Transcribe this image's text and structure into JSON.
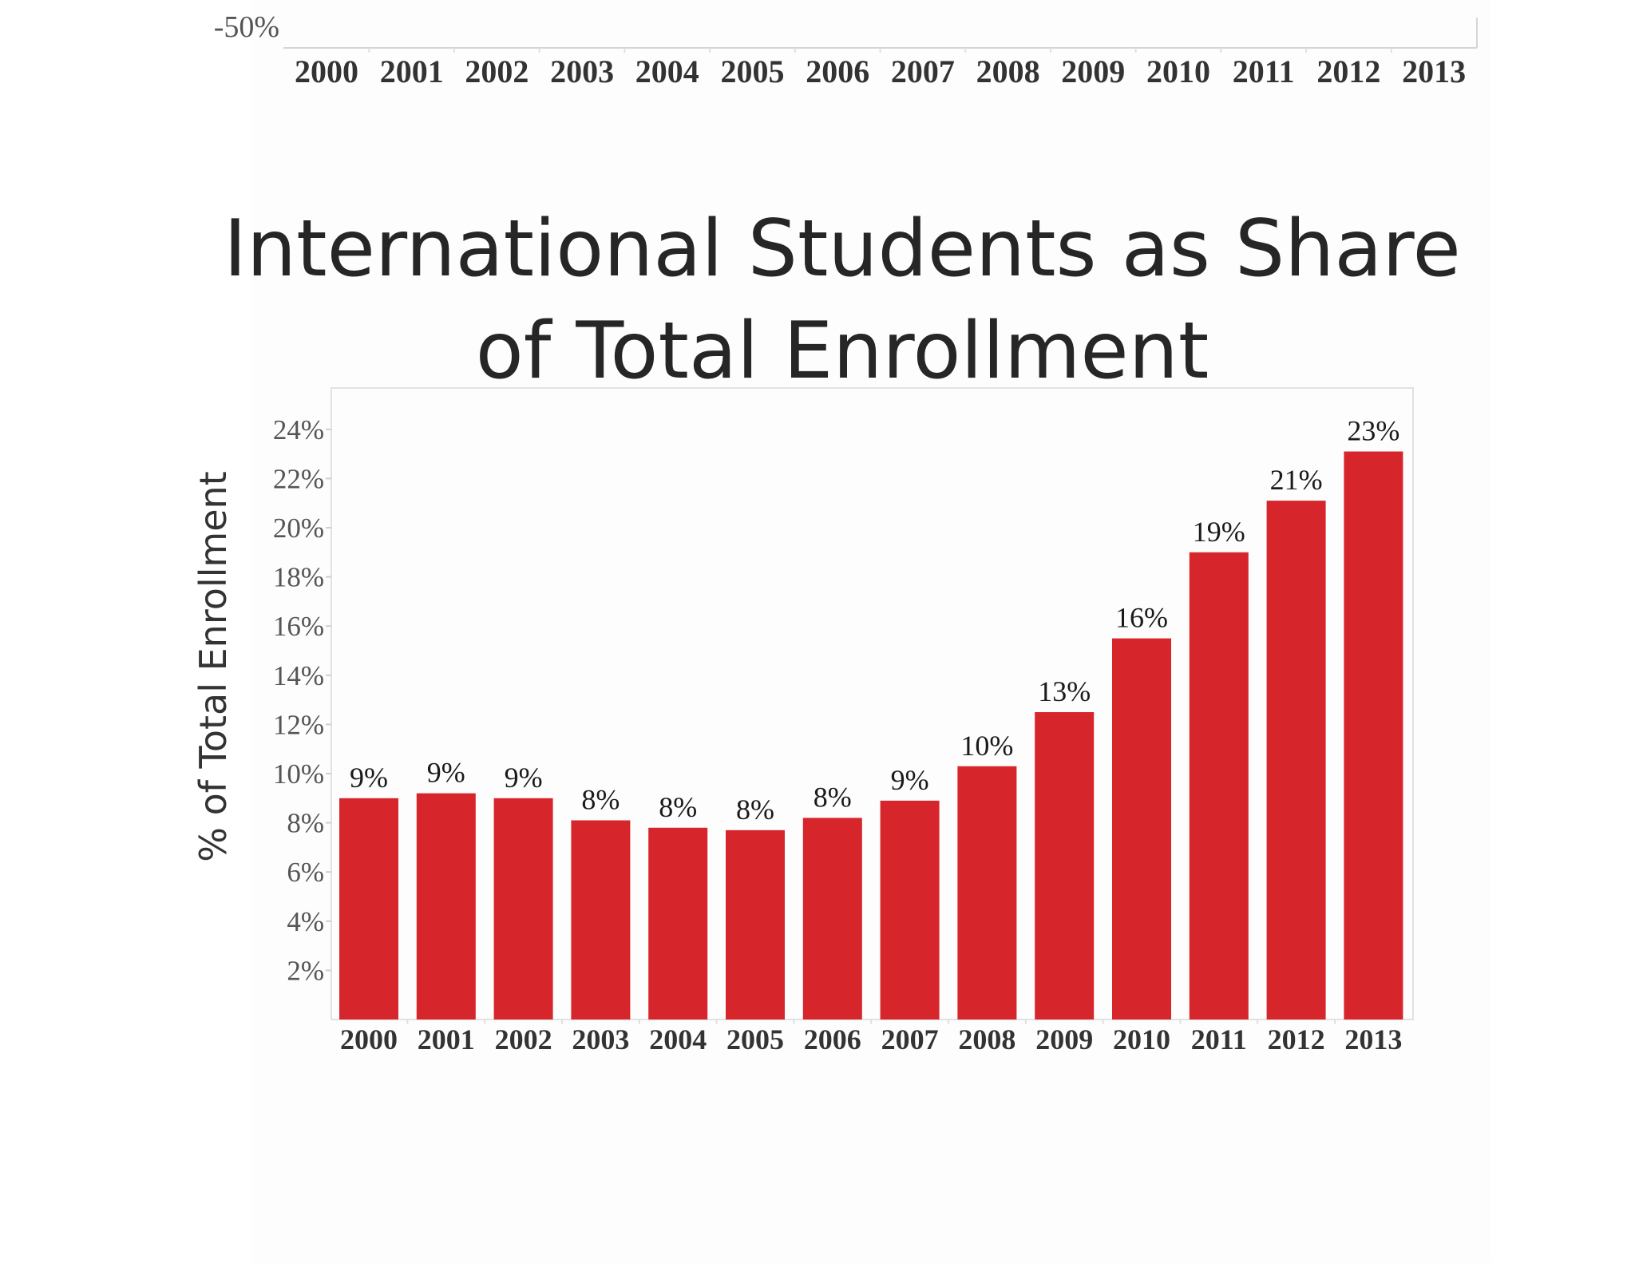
{
  "top_fragment": {
    "y_tick": "-50%",
    "x_ticks": [
      "2000",
      "2001",
      "2002",
      "2003",
      "2004",
      "2005",
      "2006",
      "2007",
      "2008",
      "2009",
      "2010",
      "2011",
      "2012",
      "2013"
    ]
  },
  "chart_data": {
    "type": "bar",
    "title": "International Students as Share of Total Enrollment",
    "title_lines": [
      "International Students as Share",
      "of Total Enrollment"
    ],
    "xlabel": "",
    "ylabel": "% of Total Enrollment",
    "categories": [
      "2000",
      "2001",
      "2002",
      "2003",
      "2004",
      "2005",
      "2006",
      "2007",
      "2008",
      "2009",
      "2010",
      "2011",
      "2012",
      "2013"
    ],
    "values": [
      9.0,
      9.2,
      9.0,
      8.1,
      7.8,
      7.7,
      8.2,
      8.9,
      10.3,
      12.5,
      15.5,
      19.0,
      21.1,
      23.1
    ],
    "data_labels": [
      "9%",
      "9%",
      "9%",
      "8%",
      "8%",
      "8%",
      "8%",
      "9%",
      "10%",
      "13%",
      "16%",
      "19%",
      "21%",
      "23%"
    ],
    "ylim": [
      0,
      25
    ],
    "y_ticks": [
      2,
      4,
      6,
      8,
      10,
      12,
      14,
      16,
      18,
      20,
      22,
      24
    ],
    "y_tick_labels": [
      "2%",
      "4%",
      "6%",
      "8%",
      "10%",
      "12%",
      "14%",
      "16%",
      "18%",
      "20%",
      "22%",
      "24%"
    ],
    "grid": false,
    "legend": "none",
    "bar_color": "#d7262b"
  }
}
